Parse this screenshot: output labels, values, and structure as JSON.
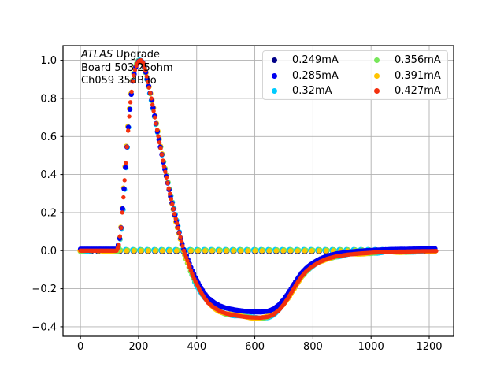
{
  "chart_data": {
    "type": "scatter",
    "title": "",
    "xlabel": "",
    "ylabel": "",
    "annotation": {
      "line1_italic": "ATLAS",
      "line1_rest": " Upgrade",
      "line2": "Board 503 25ohm",
      "line3": "Ch059 35dB lo"
    },
    "xlim": [
      -60,
      1284
    ],
    "ylim": [
      -0.45,
      1.077
    ],
    "grid": true,
    "grid_color": "#b0b0b0",
    "frame_color": "#000000",
    "xticks": [
      {
        "v": 0,
        "label": "0"
      },
      {
        "v": 200,
        "label": "200"
      },
      {
        "v": 400,
        "label": "400"
      },
      {
        "v": 600,
        "label": "600"
      },
      {
        "v": 800,
        "label": "800"
      },
      {
        "v": 1000,
        "label": "1000"
      },
      {
        "v": 1200,
        "label": "1200"
      }
    ],
    "yticks": [
      {
        "v": -0.4,
        "label": "−0.4"
      },
      {
        "v": -0.2,
        "label": "−0.2"
      },
      {
        "v": 0.0,
        "label": "0.0"
      },
      {
        "v": 0.2,
        "label": "0.2"
      },
      {
        "v": 0.4,
        "label": "0.4"
      },
      {
        "v": 0.6,
        "label": "0.6"
      },
      {
        "v": 0.8,
        "label": "0.8"
      },
      {
        "v": 1.0,
        "label": "1.0"
      }
    ],
    "legend": {
      "position": "upper right",
      "entries": [
        {
          "label": "0.249mA",
          "color": "#000088"
        },
        {
          "label": "0.285mA",
          "color": "#0000f0"
        },
        {
          "label": "0.32mA",
          "color": "#00ccff"
        },
        {
          "label": "0.356mA",
          "color": "#77e65a"
        },
        {
          "label": "0.391mA",
          "color": "#ffc400"
        },
        {
          "label": "0.427mA",
          "color": "#f3300e"
        }
      ]
    },
    "pulse_points": [
      [
        0,
        0
      ],
      [
        125,
        0
      ],
      [
        132,
        0.03
      ],
      [
        140,
        0.12
      ],
      [
        148,
        0.28
      ],
      [
        156,
        0.46
      ],
      [
        164,
        0.63
      ],
      [
        172,
        0.78
      ],
      [
        180,
        0.89
      ],
      [
        190,
        0.965
      ],
      [
        200,
        0.995
      ],
      [
        208,
        1.0
      ],
      [
        216,
        0.985
      ],
      [
        224,
        0.945
      ],
      [
        232,
        0.885
      ],
      [
        244,
        0.8
      ],
      [
        256,
        0.7
      ],
      [
        270,
        0.585
      ],
      [
        285,
        0.465
      ],
      [
        300,
        0.355
      ],
      [
        315,
        0.25
      ],
      [
        330,
        0.155
      ],
      [
        345,
        0.065
      ],
      [
        356,
        0.0
      ],
      [
        365,
        -0.04
      ],
      [
        380,
        -0.105
      ],
      [
        395,
        -0.16
      ],
      [
        410,
        -0.205
      ],
      [
        425,
        -0.245
      ],
      [
        440,
        -0.275
      ],
      [
        460,
        -0.3
      ],
      [
        480,
        -0.318
      ],
      [
        500,
        -0.33
      ],
      [
        530,
        -0.34
      ],
      [
        560,
        -0.347
      ],
      [
        590,
        -0.351
      ],
      [
        620,
        -0.352
      ],
      [
        645,
        -0.348
      ],
      [
        665,
        -0.335
      ],
      [
        685,
        -0.31
      ],
      [
        700,
        -0.282
      ],
      [
        715,
        -0.248
      ],
      [
        730,
        -0.21
      ],
      [
        745,
        -0.172
      ],
      [
        760,
        -0.138
      ],
      [
        775,
        -0.112
      ],
      [
        790,
        -0.092
      ],
      [
        805,
        -0.076
      ],
      [
        825,
        -0.058
      ],
      [
        850,
        -0.042
      ],
      [
        880,
        -0.03
      ],
      [
        920,
        -0.021
      ],
      [
        960,
        -0.015
      ],
      [
        1010,
        -0.01
      ],
      [
        1070,
        -0.006
      ],
      [
        1140,
        -0.004
      ],
      [
        1224,
        -0.002
      ]
    ],
    "pulse_series_labels": [
      "0.32mA",
      "0.356mA",
      "0.391mA",
      "0.285mA",
      "0.427mA"
    ],
    "pulse_variant": {
      "label": "0.285mA",
      "negative_scale": 0.95,
      "negative_offset": 0.012,
      "pre_pulse_offset": 0.008
    },
    "baseline": {
      "y": 0,
      "x_start": 12,
      "x_end": 1224,
      "marker_spacing": 24.5,
      "series_labels": [
        "0.249mA",
        "0.32mA",
        "0.356mA",
        "0.391mA"
      ]
    }
  }
}
